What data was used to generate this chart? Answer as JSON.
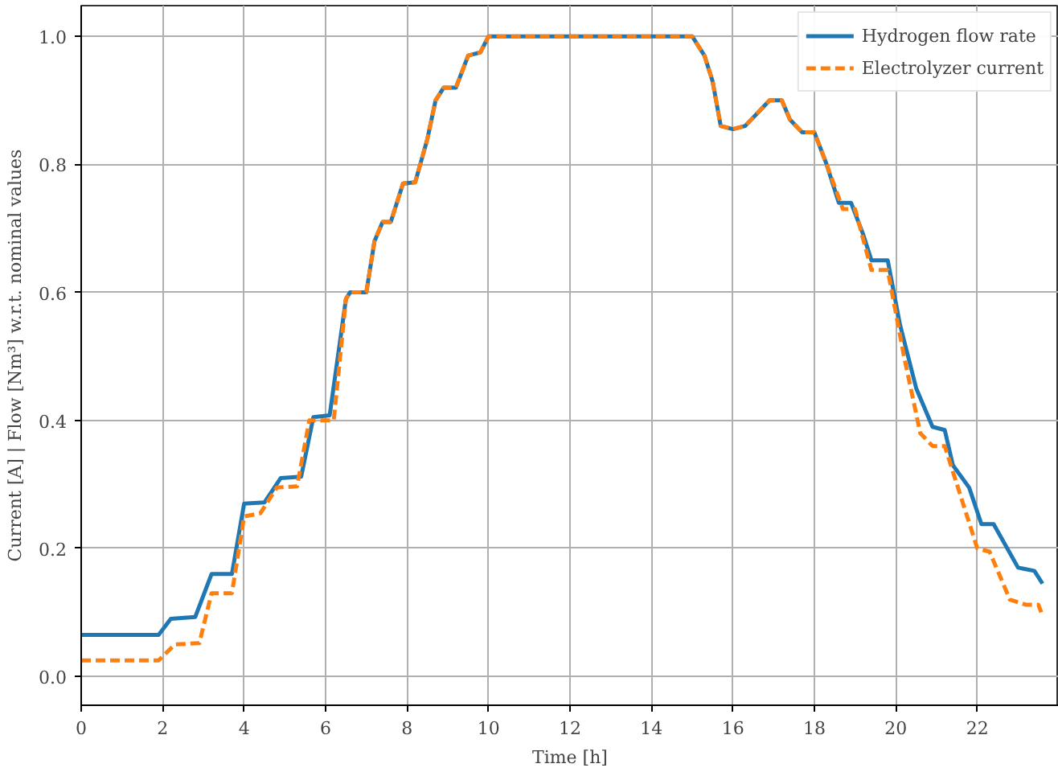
{
  "chart_data": {
    "type": "line",
    "xlabel": "Time [h]",
    "ylabel": "Current [A] | Flow [Nm³] w.r.t. nominal values",
    "xlim": [
      0,
      24
    ],
    "ylim": [
      -0.045,
      1.048
    ],
    "xticks": [
      0,
      2,
      4,
      6,
      8,
      10,
      12,
      14,
      16,
      18,
      20,
      22
    ],
    "yticks": [
      {
        "value": 0,
        "label": "0.0"
      },
      0.2,
      0.4,
      0.6,
      0.8,
      {
        "value": 1,
        "label": "1.0"
      }
    ],
    "grid": true,
    "legend": "top right",
    "series": [
      {
        "name": "Hydrogen flow rate",
        "color": "#1f77b4",
        "line_style": "solid",
        "x": [
          0,
          1.9,
          2.2,
          2.8,
          3.2,
          3.7,
          4.0,
          4.5,
          4.9,
          5.4,
          5.7,
          6.1,
          6.5,
          6.6,
          7.0,
          7.2,
          7.4,
          7.6,
          7.9,
          8.2,
          8.5,
          8.7,
          8.9,
          9.2,
          9.5,
          9.8,
          10.0,
          15.0,
          15.3,
          15.5,
          15.7,
          16.0,
          16.3,
          16.6,
          16.9,
          17.2,
          17.4,
          17.7,
          18.0,
          18.3,
          18.6,
          18.9,
          19.2,
          19.4,
          19.8,
          20.1,
          20.5,
          20.9,
          21.2,
          21.4,
          21.8,
          22.1,
          22.4,
          23.0,
          23.4,
          23.6
        ],
        "values": [
          0.065,
          0.065,
          0.09,
          0.093,
          0.16,
          0.16,
          0.27,
          0.272,
          0.31,
          0.312,
          0.405,
          0.408,
          0.59,
          0.6,
          0.6,
          0.68,
          0.71,
          0.71,
          0.77,
          0.772,
          0.84,
          0.9,
          0.92,
          0.92,
          0.97,
          0.975,
          1.0,
          1.0,
          0.97,
          0.93,
          0.86,
          0.855,
          0.86,
          0.88,
          0.9,
          0.9,
          0.87,
          0.85,
          0.85,
          0.8,
          0.74,
          0.74,
          0.69,
          0.65,
          0.65,
          0.55,
          0.45,
          0.39,
          0.385,
          0.33,
          0.295,
          0.238,
          0.238,
          0.17,
          0.165,
          0.145
        ]
      },
      {
        "name": "Electrolyzer current",
        "color": "#ff7f0e",
        "line_style": "dashed",
        "x": [
          0,
          1.9,
          2.3,
          2.9,
          3.2,
          3.7,
          4.0,
          4.4,
          4.8,
          5.3,
          5.6,
          6.2,
          6.5,
          6.6,
          7.0,
          7.2,
          7.4,
          7.6,
          7.9,
          8.2,
          8.5,
          8.7,
          8.9,
          9.2,
          9.5,
          9.8,
          10.0,
          15.0,
          15.3,
          15.5,
          15.7,
          16.0,
          16.3,
          16.6,
          16.9,
          17.2,
          17.4,
          17.7,
          18.0,
          18.3,
          18.7,
          19.0,
          19.4,
          19.8,
          20.2,
          20.6,
          20.9,
          21.2,
          21.6,
          22.0,
          22.3,
          22.8,
          23.2,
          23.5,
          23.6
        ],
        "values": [
          0.025,
          0.025,
          0.05,
          0.052,
          0.13,
          0.13,
          0.25,
          0.255,
          0.295,
          0.297,
          0.4,
          0.4,
          0.59,
          0.6,
          0.6,
          0.68,
          0.71,
          0.71,
          0.77,
          0.772,
          0.84,
          0.9,
          0.92,
          0.92,
          0.97,
          0.975,
          1.0,
          1.0,
          0.97,
          0.93,
          0.86,
          0.855,
          0.86,
          0.88,
          0.9,
          0.9,
          0.87,
          0.85,
          0.85,
          0.8,
          0.73,
          0.73,
          0.635,
          0.635,
          0.5,
          0.38,
          0.36,
          0.36,
          0.28,
          0.2,
          0.195,
          0.12,
          0.112,
          0.112,
          0.095
        ]
      }
    ]
  }
}
